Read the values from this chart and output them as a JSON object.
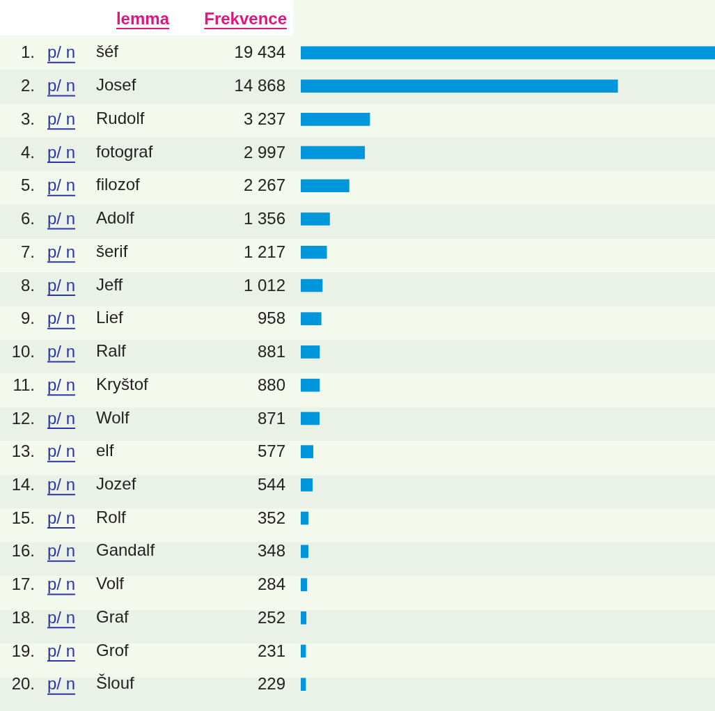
{
  "chart_data": {
    "type": "bar",
    "orientation": "horizontal",
    "ylabel": "lemma",
    "xlabel": "Frekvence",
    "categories": [
      "šéf",
      "Josef",
      "Rudolf",
      "fotograf",
      "filozof",
      "Adolf",
      "šerif",
      "Jeff",
      "Lief",
      "Ralf",
      "Kryštof",
      "Wolf",
      "elf",
      "Jozef",
      "Rolf",
      "Gandalf",
      "Volf",
      "Graf",
      "Grof",
      "Šlouf"
    ],
    "values": [
      19434,
      14868,
      3237,
      2997,
      2267,
      1356,
      1217,
      1012,
      958,
      881,
      880,
      871,
      577,
      544,
      352,
      348,
      284,
      252,
      231,
      229
    ],
    "value_labels": [
      "19 434",
      "14 868",
      "3 237",
      "2 997",
      "2 267",
      "1 356",
      "1 217",
      "1 012",
      "958",
      "881",
      "880",
      "871",
      "577",
      "544",
      "352",
      "348",
      "284",
      "252",
      "231",
      "229"
    ],
    "color": "#0096dc",
    "xlim": [
      0,
      19434
    ],
    "tick_labels": "y",
    "grid": false,
    "legend": false,
    "annotations": [
      "1.",
      "p/ n",
      "2.",
      "p/ n",
      "3.",
      "p/ n",
      "4.",
      "p/ n",
      "5.",
      "p/ n",
      "6.",
      "p/ n",
      "7.",
      "p/ n",
      "8.",
      "p/ n",
      "9.",
      "p/ n",
      "10.",
      "p/ n",
      "11.",
      "p/ n",
      "12.",
      "p/ n",
      "13.",
      "p/ n",
      "14.",
      "p/ n",
      "15.",
      "p/ n",
      "16.",
      "p/ n",
      "17.",
      "p/ n",
      "18.",
      "p/ n",
      "19.",
      "p/ n",
      "20.",
      "p/ n"
    ]
  }
}
